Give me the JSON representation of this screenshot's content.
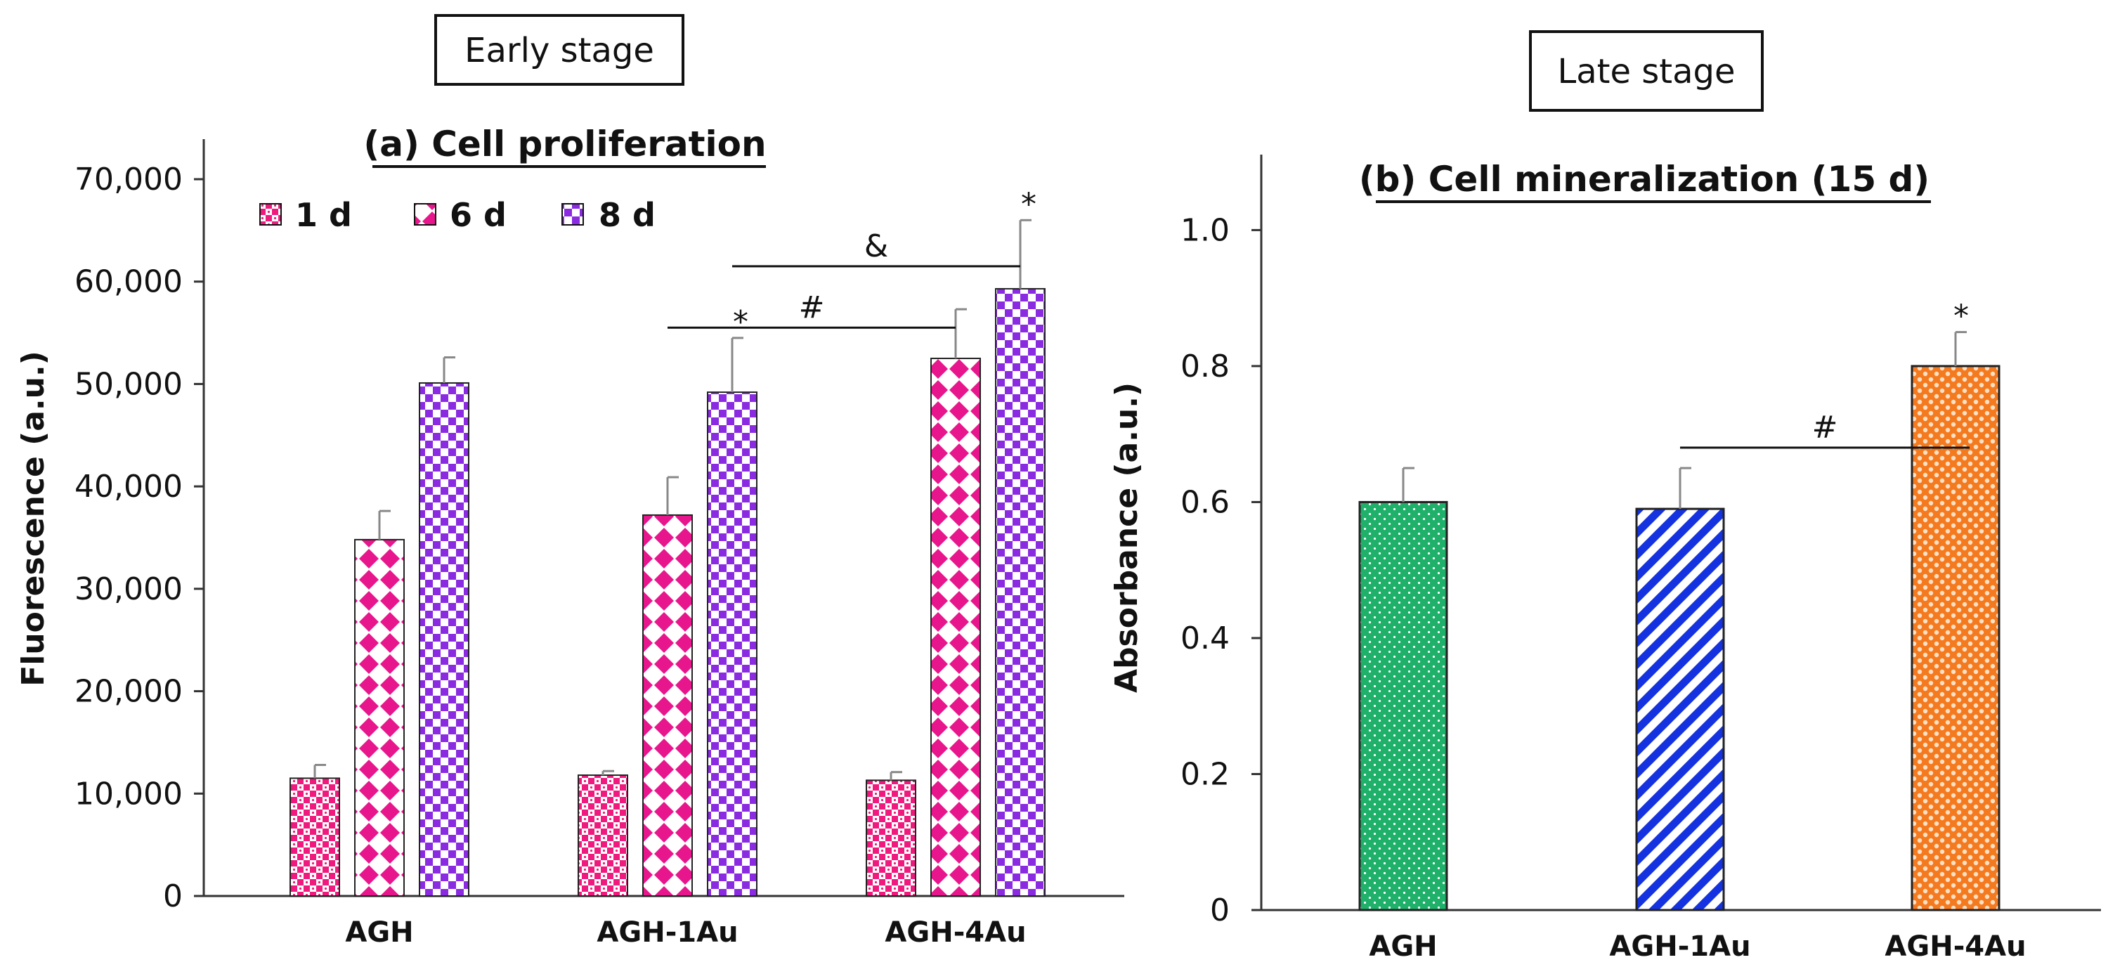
{
  "colors": {
    "d1": "#f0197d",
    "d6": "#e8168c",
    "d8": "#8a2be2",
    "agh": "#1fb06a",
    "agh1au": "#1432e0",
    "agh4au": "#f47a20"
  },
  "chart_data": [
    {
      "type": "bar",
      "stage_label": "Early stage",
      "title": "(a) Cell proliferation",
      "ylabel": "Fluorescence (a.u.)",
      "ylim": [
        0,
        70000
      ],
      "yticks": [
        0,
        10000,
        20000,
        30000,
        40000,
        50000,
        60000,
        70000
      ],
      "ytick_labels": [
        "0",
        "10,000",
        "20,000",
        "30,000",
        "40,000",
        "50,000",
        "60,000",
        "70,000"
      ],
      "categories": [
        "AGH",
        "AGH-1Au",
        "AGH-4Au"
      ],
      "legend_position": "top-left",
      "series": [
        {
          "name": "1 d",
          "values": [
            11500,
            11800,
            11300
          ],
          "errors": [
            1300,
            400,
            800
          ]
        },
        {
          "name": "6 d",
          "values": [
            34800,
            37200,
            52500
          ],
          "errors": [
            2800,
            3700,
            4800
          ]
        },
        {
          "name": "8 d",
          "values": [
            50100,
            49200,
            59300
          ],
          "errors": [
            2500,
            5300,
            6700
          ]
        }
      ],
      "star_labels": [
        "",
        "",
        "",
        "",
        "",
        "*",
        "",
        "",
        "*"
      ],
      "brackets": [
        {
          "label": "&",
          "from": "AGH-1Au · 8 d",
          "to": "AGH-4Au · 8 d",
          "y": 61500
        },
        {
          "label": "#",
          "from": "AGH-1Au · 6 d",
          "to": "AGH-4Au · 6 d",
          "y": 55500
        }
      ]
    },
    {
      "type": "bar",
      "stage_label": "Late stage",
      "title": "(b) Cell mineralization (15 d)",
      "ylabel": "Absorbance (a.u.)",
      "ylim": [
        0,
        1.08
      ],
      "yticks": [
        0,
        0.2,
        0.4,
        0.6,
        0.8,
        1.0
      ],
      "ytick_labels": [
        "0",
        "0.2",
        "0.4",
        "0.6",
        "0.8",
        "1.0"
      ],
      "categories": [
        "AGH",
        "AGH-1Au",
        "AGH-4Au"
      ],
      "values": [
        0.6,
        0.59,
        0.8
      ],
      "errors": [
        0.05,
        0.06,
        0.05
      ],
      "star_labels": [
        "",
        "",
        "*"
      ],
      "brackets": [
        {
          "label": "#",
          "from": "AGH-1Au",
          "to": "AGH-4Au",
          "y": 0.68
        }
      ]
    }
  ]
}
